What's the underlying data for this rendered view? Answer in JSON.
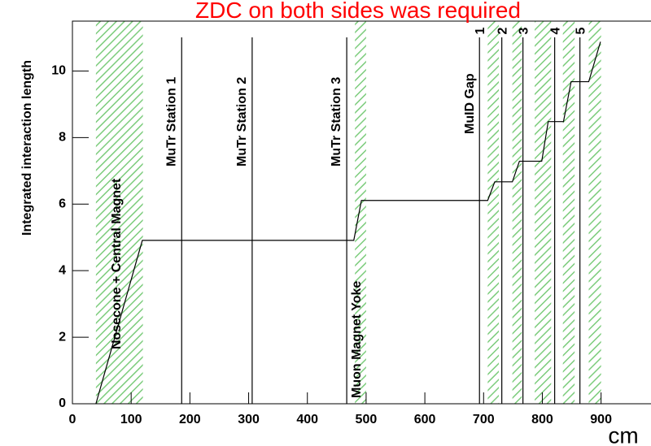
{
  "chart_data": {
    "type": "line",
    "title": "ZDC on both sides was required",
    "y_label": "Integrated interaction length",
    "x_label": "cm",
    "x": [
      40,
      119,
      479,
      492,
      707,
      719,
      749,
      761,
      799,
      810,
      836,
      849,
      879,
      899
    ],
    "series": [
      {
        "color": "#000000",
        "values": [
          0,
          4.91,
          4.91,
          6.11,
          6.11,
          6.67,
          6.67,
          7.29,
          7.29,
          8.48,
          8.48,
          9.68,
          9.68,
          10.88
        ]
      }
    ],
    "xlim": [
      0,
      985
    ],
    "ylim": [
      0,
      11.5
    ],
    "xticks": [
      0,
      100,
      200,
      300,
      400,
      500,
      600,
      700,
      800,
      900
    ],
    "yticks": [
      0,
      2,
      4,
      6,
      8,
      10
    ],
    "band_color": "#7ccc7c",
    "bands": [
      [
        40,
        120
      ],
      [
        481,
        500
      ],
      [
        707,
        726
      ],
      [
        749,
        765
      ],
      [
        787,
        815
      ],
      [
        835,
        855
      ],
      [
        879,
        900
      ]
    ],
    "markers": [
      {
        "x": 186,
        "label": "MuTr Station 1"
      },
      {
        "x": 306,
        "label": "MuTr Station 2"
      },
      {
        "x": 467,
        "label": "MuTr Station 3"
      },
      {
        "x": 693,
        "label": "1"
      },
      {
        "x": 731,
        "label": "2"
      },
      {
        "x": 767,
        "label": "3"
      },
      {
        "x": 821,
        "label": "4"
      },
      {
        "x": 864,
        "label": "5"
      }
    ],
    "annotations": [
      "Nosecone + Central Magnet",
      "Muon Magnet Yoke",
      "MuID Gap"
    ]
  }
}
